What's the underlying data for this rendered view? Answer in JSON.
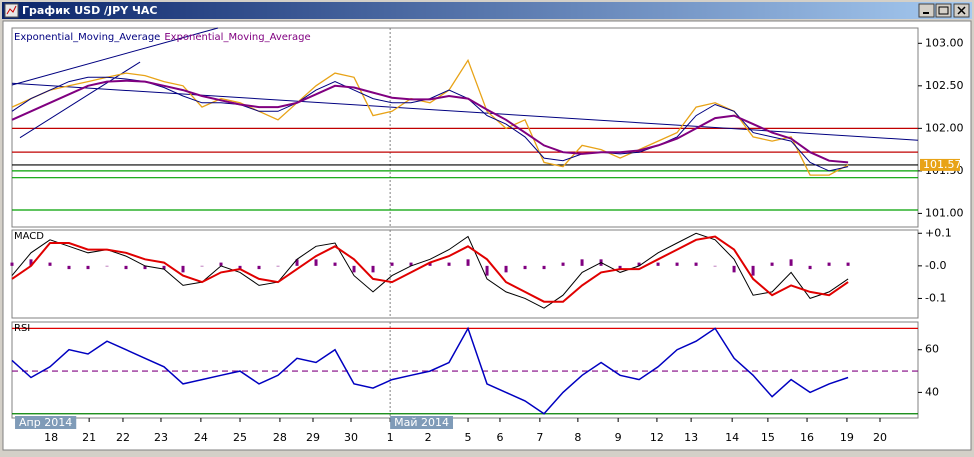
{
  "window": {
    "title": "График USD /JPY  ЧАС"
  },
  "chart_data": [
    {
      "type": "line",
      "x": [
        0,
        0.5,
        1,
        1.5,
        2,
        2.5,
        3,
        3.5,
        4,
        4.5,
        5,
        5.5,
        6,
        6.5,
        7,
        7.5,
        8,
        8.5,
        9,
        9.5,
        10,
        10.5,
        11,
        11.5,
        12,
        12.5,
        13,
        13.5,
        14,
        14.5,
        15,
        15.5,
        16,
        16.5,
        17,
        17.5,
        18,
        18.5,
        19,
        19.5,
        20,
        20.5,
        21,
        21.5,
        22
      ],
      "xlim": [
        0,
        23.84
      ],
      "ylim": [
        100.84,
        103.18
      ],
      "yticks": [
        {
          "value": 103,
          "label": "103.00"
        },
        {
          "value": 102.5,
          "label": "102.50"
        },
        {
          "value": 102,
          "label": "102.00"
        },
        {
          "value": 101.5,
          "label": "101.50"
        },
        {
          "value": 101,
          "label": "101.00"
        }
      ],
      "series": [
        {
          "color": "#e8a317",
          "width": 1.3,
          "values": [
            102.25,
            102.35,
            102.45,
            102.5,
            102.55,
            102.6,
            102.65,
            102.62,
            102.55,
            102.5,
            102.25,
            102.35,
            102.3,
            102.2,
            102.1,
            102.3,
            102.5,
            102.65,
            102.6,
            102.15,
            102.2,
            102.35,
            102.3,
            102.45,
            102.8,
            102.2,
            102.0,
            102.1,
            101.6,
            101.55,
            101.8,
            101.75,
            101.65,
            101.75,
            101.85,
            101.95,
            102.25,
            102.3,
            102.2,
            101.9,
            101.85,
            101.9,
            101.45,
            101.45,
            101.57
          ]
        },
        {
          "name": "Exponential_Moving_Average",
          "color": "#000080",
          "width": 1,
          "values": [
            102.2,
            102.35,
            102.45,
            102.55,
            102.6,
            102.6,
            102.58,
            102.55,
            102.48,
            102.38,
            102.3,
            102.3,
            102.28,
            102.2,
            102.2,
            102.3,
            102.45,
            102.55,
            102.45,
            102.35,
            102.3,
            102.3,
            102.35,
            102.45,
            102.35,
            102.15,
            102.05,
            101.9,
            101.65,
            101.62,
            101.7,
            101.72,
            101.7,
            101.72,
            101.8,
            101.9,
            102.15,
            102.28,
            102.2,
            101.95,
            101.9,
            101.85,
            101.6,
            101.5,
            101.55
          ]
        },
        {
          "name": "Exponential_Moving_Average",
          "color": "#800080",
          "width": 2,
          "values": [
            102.1,
            102.2,
            102.3,
            102.4,
            102.5,
            102.55,
            102.56,
            102.55,
            102.5,
            102.45,
            102.38,
            102.33,
            102.28,
            102.25,
            102.25,
            102.3,
            102.4,
            102.5,
            102.48,
            102.42,
            102.36,
            102.34,
            102.34,
            102.38,
            102.35,
            102.22,
            102.1,
            101.95,
            101.8,
            101.72,
            101.7,
            101.72,
            101.72,
            101.74,
            101.8,
            101.88,
            102.0,
            102.12,
            102.15,
            102.05,
            101.95,
            101.88,
            101.72,
            101.62,
            101.6
          ]
        }
      ],
      "levels": [
        {
          "value": 102.0,
          "color": "#c00000"
        },
        {
          "value": 101.72,
          "color": "#c00000"
        },
        {
          "value": 101.57,
          "color": "#000000"
        },
        {
          "value": 101.5,
          "color": "#00a000"
        },
        {
          "value": 101.42,
          "color": "#00a000"
        },
        {
          "value": 101.04,
          "color": "#00a000"
        }
      ],
      "lines": [
        {
          "x": [
            0,
            23.84
          ],
          "y": [
            102.53,
            101.86
          ],
          "color": "#000080"
        },
        {
          "x": [
            0,
            5.42
          ],
          "y": [
            102.51,
            103.18
          ],
          "color": "#000080"
        },
        {
          "x": [
            0.21,
            3.37
          ],
          "y": [
            101.89,
            102.78
          ],
          "color": "#000080"
        }
      ],
      "last_price": 101.57
    },
    {
      "type": "line",
      "title": "MACD",
      "x": [
        0,
        0.5,
        1,
        1.5,
        2,
        2.5,
        3,
        3.5,
        4,
        4.5,
        5,
        5.5,
        6,
        6.5,
        7,
        7.5,
        8,
        8.5,
        9,
        9.5,
        10,
        10.5,
        11,
        11.5,
        12,
        12.5,
        13,
        13.5,
        14,
        14.5,
        15,
        15.5,
        16,
        16.5,
        17,
        17.5,
        18,
        18.5,
        19,
        19.5,
        20,
        20.5,
        21,
        21.5,
        22
      ],
      "xlim": [
        0,
        23.84
      ],
      "ylim": [
        -0.16,
        0.11
      ],
      "yticks": [
        {
          "value": 0.1,
          "label": "+0.1"
        },
        {
          "value": 0,
          "label": "-0.0"
        },
        {
          "value": -0.1,
          "label": "-0.1"
        }
      ],
      "series": [
        {
          "type": "bar",
          "color": "#800080",
          "values": [
            0.01,
            0.02,
            0.01,
            -0.01,
            -0.01,
            0,
            -0.01,
            -0.01,
            -0.01,
            -0.02,
            0,
            0.01,
            -0.01,
            -0.01,
            0,
            0.02,
            0.02,
            0.01,
            -0.02,
            -0.02,
            0.01,
            0.01,
            0.01,
            0.01,
            0.02,
            -0.03,
            -0.02,
            -0.01,
            -0.01,
            0.01,
            0.02,
            0.02,
            -0.01,
            0.01,
            0.01,
            0.01,
            0.01,
            0,
            -0.02,
            -0.03,
            0.01,
            0.02,
            -0.01,
            0.01,
            0.01
          ]
        },
        {
          "color": "#000000",
          "width": 1,
          "values": [
            -0.03,
            0.04,
            0.08,
            0.06,
            0.04,
            0.05,
            0.03,
            0.0,
            -0.01,
            -0.06,
            -0.05,
            0.0,
            -0.02,
            -0.06,
            -0.05,
            0.02,
            0.06,
            0.07,
            -0.03,
            -0.08,
            -0.03,
            0.0,
            0.02,
            0.05,
            0.09,
            -0.04,
            -0.08,
            -0.1,
            -0.13,
            -0.09,
            -0.02,
            0.01,
            -0.02,
            0.0,
            0.04,
            0.07,
            0.1,
            0.08,
            0.02,
            -0.09,
            -0.08,
            -0.02,
            -0.1,
            -0.08,
            -0.04
          ]
        },
        {
          "color": "#e00000",
          "width": 2,
          "values": [
            -0.04,
            0.0,
            0.07,
            0.07,
            0.05,
            0.05,
            0.04,
            0.02,
            0.01,
            -0.03,
            -0.05,
            -0.02,
            -0.01,
            -0.04,
            -0.05,
            -0.01,
            0.03,
            0.06,
            0.02,
            -0.04,
            -0.05,
            -0.02,
            0.01,
            0.03,
            0.06,
            0.02,
            -0.05,
            -0.08,
            -0.11,
            -0.11,
            -0.06,
            -0.02,
            -0.01,
            -0.01,
            0.02,
            0.05,
            0.08,
            0.09,
            0.05,
            -0.04,
            -0.09,
            -0.06,
            -0.08,
            -0.09,
            -0.05
          ]
        }
      ]
    },
    {
      "type": "line",
      "title": "RSI",
      "x": [
        0,
        0.5,
        1,
        1.5,
        2,
        2.5,
        3,
        3.5,
        4,
        4.5,
        5,
        5.5,
        6,
        6.5,
        7,
        7.5,
        8,
        8.5,
        9,
        9.5,
        10,
        10.5,
        11,
        11.5,
        12,
        12.5,
        13,
        13.5,
        14,
        14.5,
        15,
        15.5,
        16,
        16.5,
        17,
        17.5,
        18,
        18.5,
        19,
        19.5,
        20,
        20.5,
        21,
        21.5,
        22
      ],
      "xlim": [
        0,
        23.84
      ],
      "ylim": [
        28,
        73
      ],
      "yticks": [
        60,
        40
      ],
      "series": [
        {
          "color": "#0000c0",
          "width": 1.5,
          "values": [
            55,
            47,
            52,
            60,
            58,
            64,
            60,
            56,
            52,
            44,
            46,
            48,
            50,
            44,
            48,
            56,
            54,
            60,
            44,
            42,
            46,
            48,
            50,
            54,
            70,
            44,
            40,
            36,
            30,
            40,
            48,
            54,
            48,
            46,
            52,
            60,
            64,
            70,
            56,
            48,
            38,
            46,
            40,
            44,
            47
          ]
        }
      ],
      "levels": [
        {
          "value": 70,
          "color": "#e00000"
        },
        {
          "value": 50,
          "color": "#800080",
          "dash": true
        },
        {
          "value": 30,
          "color": "#008000"
        }
      ],
      "xticks": [
        {
          "value": 1.03,
          "label": "18"
        },
        {
          "value": 2.03,
          "label": "21"
        },
        {
          "value": 2.92,
          "label": "22"
        },
        {
          "value": 3.92,
          "label": "23"
        },
        {
          "value": 4.97,
          "label": "24"
        },
        {
          "value": 6.0,
          "label": "25"
        },
        {
          "value": 7.05,
          "label": "28"
        },
        {
          "value": 7.92,
          "label": "29"
        },
        {
          "value": 8.92,
          "label": "30"
        },
        {
          "value": 9.95,
          "label": "1"
        },
        {
          "value": 10.95,
          "label": "2"
        },
        {
          "value": 12.0,
          "label": "5"
        },
        {
          "value": 12.84,
          "label": "6"
        },
        {
          "value": 13.89,
          "label": "7"
        },
        {
          "value": 14.89,
          "label": "8"
        },
        {
          "value": 15.95,
          "label": "9"
        },
        {
          "value": 16.97,
          "label": "12"
        },
        {
          "value": 17.87,
          "label": "13"
        },
        {
          "value": 18.95,
          "label": "14"
        },
        {
          "value": 19.89,
          "label": "15"
        },
        {
          "value": 20.92,
          "label": "16"
        },
        {
          "value": 21.97,
          "label": "19"
        },
        {
          "value": 22.84,
          "label": "20"
        }
      ],
      "periods": [
        {
          "value": 0.08,
          "label": "Апр 2014"
        },
        {
          "value": 9.95,
          "label": "Май 2014"
        }
      ]
    }
  ]
}
